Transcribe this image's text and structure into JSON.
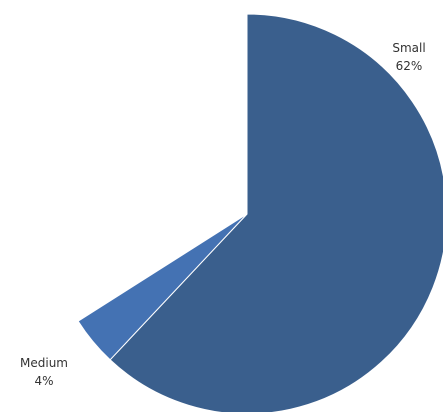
{
  "chart_data": {
    "type": "pie",
    "slices": [
      {
        "label": "Small",
        "value": 62,
        "value_label": "62%",
        "color": "#3a5f8d"
      },
      {
        "label": "Medium",
        "value": 4,
        "value_label": "4%",
        "color": "#4472b3"
      }
    ],
    "legend": "none"
  }
}
